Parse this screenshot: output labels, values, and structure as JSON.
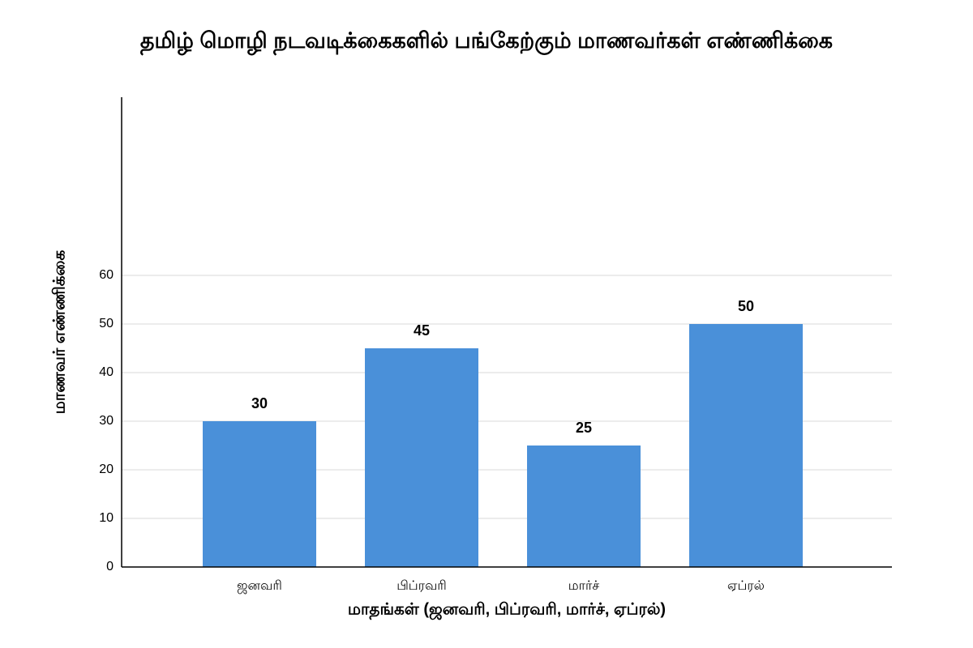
{
  "chart_data": {
    "type": "bar",
    "title": "தமிழ் மொழி நடவடிக்கைகளில் பங்கேற்கும் மாணவர்கள் எண்ணிக்கை",
    "x_label": "மாதங்கள் (ஜனவரி, பிப்ரவரி, மார்ச், ஏப்ரல்)",
    "y_label": "மாணவர் எண்ணிக்கை",
    "categories": [
      "ஜனவரி",
      "பிப்ரவரி",
      "மார்ச்",
      "ஏப்ரல்"
    ],
    "values": [
      30,
      45,
      25,
      50
    ],
    "color": "#4a90d9",
    "ylim": [
      0,
      96.67
    ],
    "yticks": [
      0,
      10,
      20,
      30,
      40,
      50,
      60
    ],
    "grid": true
  }
}
